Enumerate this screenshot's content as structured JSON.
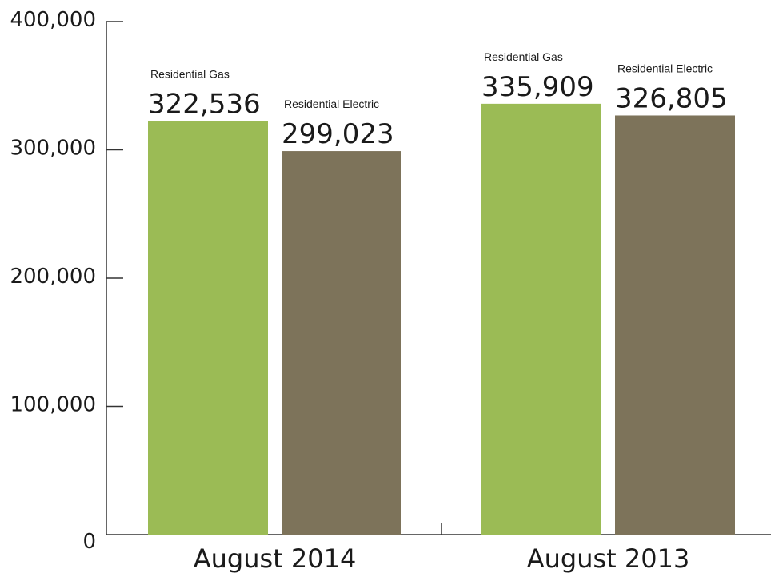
{
  "chart_data": {
    "type": "bar",
    "categories": [
      "August 2014",
      "August 2013"
    ],
    "series": [
      {
        "name": "Residential Gas",
        "values": [
          322536,
          335909
        ],
        "display": [
          "322,536",
          "335,909"
        ],
        "color": "#9BBB55"
      },
      {
        "name": "Residential Electric",
        "values": [
          299023,
          326805
        ],
        "display": [
          "299,023",
          "326,805"
        ],
        "color": "#7D735A"
      }
    ],
    "ylim": [
      0,
      400000
    ],
    "yticks": [
      0,
      100000,
      200000,
      300000,
      400000
    ],
    "ytick_labels": [
      "0",
      "100,000",
      "200,000",
      "300,000",
      "400,000"
    ],
    "title": "",
    "xlabel": "",
    "ylabel": "",
    "grid": false,
    "legend": "none"
  }
}
